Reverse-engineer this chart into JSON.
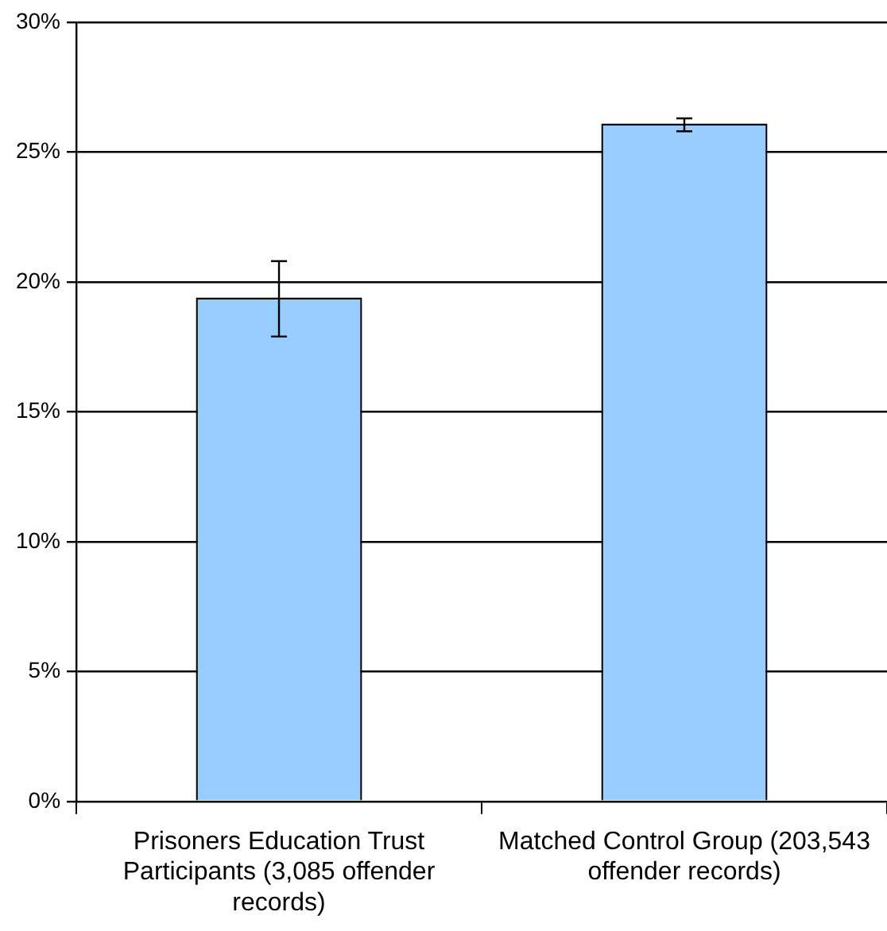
{
  "chart_data": {
    "type": "bar",
    "categories": [
      "Prisoners Education Trust Participants (3,085 offender records)",
      "Matched Control Group (203,543 offender records)"
    ],
    "values": [
      19.4,
      26.1
    ],
    "errors": [
      [
        17.9,
        20.8
      ],
      [
        25.8,
        26.3
      ]
    ],
    "color": "#99ccff",
    "ylim": [
      0,
      30
    ],
    "yticks": [
      {
        "value": 0,
        "label": "0%"
      },
      {
        "value": 5,
        "label": "5%"
      },
      {
        "value": 10,
        "label": "10%"
      },
      {
        "value": 15,
        "label": "15%"
      },
      {
        "value": 20,
        "label": "20%"
      },
      {
        "value": 25,
        "label": "25%"
      },
      {
        "value": 30,
        "label": "30%"
      }
    ],
    "grid": "y",
    "legend": false
  }
}
